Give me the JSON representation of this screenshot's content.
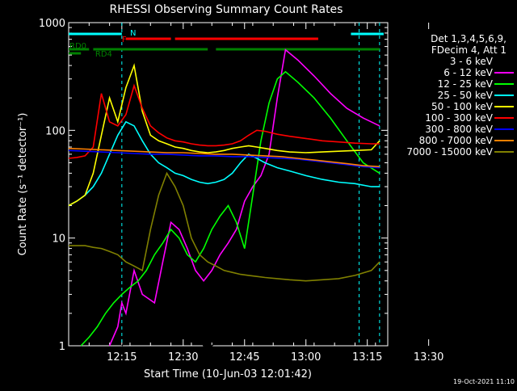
{
  "chart_data": {
    "type": "line",
    "title": "RHESSI Observing Summary Count Rates",
    "xlabel": "Start Time (10-Jun-03 12:01:42)",
    "ylabel": "Count Rate (s⁻¹ detector⁻¹)",
    "yscale": "log",
    "ylim": [
      1,
      1000
    ],
    "xlim_minutes": [
      2,
      40
    ],
    "x_ticks": [
      {
        "label": "12:15",
        "minutes": 15
      },
      {
        "label": "12:30",
        "minutes": 30
      },
      {
        "label": "12:45",
        "minutes": 45
      },
      {
        "label": "13:00",
        "minutes": 60
      },
      {
        "label": "13:15",
        "minutes": 75
      },
      {
        "label": "13:30",
        "minutes": 90
      }
    ],
    "y_ticks": [
      {
        "label": "1",
        "value": 1
      },
      {
        "label": "10",
        "value": 10
      },
      {
        "label": "100",
        "value": 100
      },
      {
        "label": "1000",
        "value": 1000
      }
    ],
    "legend_header": [
      "Det 1,3,4,5,6,9,",
      "FDecim 4, Att 1"
    ],
    "legend_position": "right",
    "timestamp": "19-Oct-2021 11:10",
    "series": [
      {
        "name": "3 - 6 keV",
        "color": "#000000",
        "x": [
          15,
          16,
          19,
          22,
          24,
          27,
          29,
          30,
          31,
          33,
          35,
          37,
          40,
          42,
          44,
          46,
          47,
          48,
          50,
          53,
          56,
          60,
          64,
          68,
          72,
          76,
          78
        ],
        "y": [
          1,
          1.1,
          1.2,
          1.4,
          1.8,
          3.5,
          4.5,
          4,
          2,
          1.3,
          1,
          1,
          1.2,
          1.6,
          1.8,
          2,
          1.6,
          2.2,
          8,
          28,
          46,
          32,
          20,
          12,
          7,
          4.5,
          3
        ]
      },
      {
        "name": "6 - 12 keV",
        "color": "#ff00ff",
        "x": [
          12,
          14,
          15,
          16,
          18,
          20,
          23,
          25,
          27,
          29,
          31,
          33,
          35,
          37,
          39,
          41,
          43,
          45,
          47,
          49,
          51,
          53,
          55,
          58,
          62,
          66,
          70,
          74,
          78
        ],
        "y": [
          1,
          1.5,
          2.5,
          2,
          5,
          3,
          2.5,
          6,
          14,
          12,
          8,
          5,
          4,
          5,
          7,
          9,
          12,
          22,
          30,
          38,
          60,
          200,
          560,
          450,
          320,
          220,
          160,
          130,
          110
        ]
      },
      {
        "name": "12 - 25 keV",
        "color": "#00ff00",
        "x": [
          5,
          7,
          9,
          11,
          13,
          15,
          17,
          19,
          21,
          23,
          25,
          27,
          29,
          31,
          33,
          35,
          37,
          39,
          41,
          43,
          45,
          47,
          49,
          51,
          53,
          55,
          58,
          62,
          66,
          70,
          74,
          78
        ],
        "y": [
          1,
          1.2,
          1.5,
          2,
          2.5,
          3,
          3.5,
          4,
          5,
          7,
          9,
          12,
          10,
          7,
          6,
          8,
          12,
          16,
          20,
          14,
          8,
          25,
          80,
          180,
          300,
          350,
          280,
          200,
          130,
          80,
          50,
          40
        ]
      },
      {
        "name": "25 - 50 keV",
        "color": "#00ffff",
        "x": [
          2,
          4,
          6,
          8,
          10,
          12,
          14,
          16,
          18,
          20,
          22,
          24,
          26,
          28,
          30,
          32,
          34,
          36,
          38,
          40,
          42,
          44,
          46,
          48,
          50,
          53,
          56,
          60,
          64,
          68,
          72,
          76,
          78
        ],
        "y": [
          20,
          22,
          25,
          30,
          40,
          60,
          90,
          120,
          110,
          80,
          60,
          50,
          45,
          40,
          38,
          35,
          33,
          32,
          33,
          35,
          40,
          50,
          60,
          55,
          50,
          45,
          42,
          38,
          35,
          33,
          32,
          30,
          30
        ]
      },
      {
        "name": "50 - 100 keV",
        "color": "#ffff00",
        "x": [
          2,
          4,
          6,
          8,
          10,
          12,
          14,
          16,
          18,
          20,
          22,
          24,
          26,
          28,
          30,
          32,
          34,
          36,
          38,
          40,
          42,
          44,
          46,
          48,
          50,
          53,
          56,
          60,
          64,
          68,
          72,
          76,
          78
        ],
        "y": [
          20,
          22,
          25,
          40,
          90,
          200,
          120,
          250,
          400,
          150,
          90,
          80,
          75,
          70,
          68,
          65,
          63,
          62,
          63,
          65,
          68,
          70,
          72,
          70,
          68,
          65,
          63,
          62,
          63,
          64,
          65,
          66,
          80
        ]
      },
      {
        "name": "100 - 300 keV",
        "color": "#ff0000",
        "x": [
          2,
          4,
          6,
          8,
          10,
          12,
          14,
          16,
          18,
          20,
          22,
          24,
          26,
          28,
          30,
          32,
          34,
          36,
          38,
          40,
          42,
          44,
          46,
          48,
          50,
          53,
          56,
          60,
          64,
          68,
          72,
          76,
          78
        ],
        "y": [
          55,
          56,
          58,
          70,
          220,
          120,
          110,
          140,
          260,
          160,
          110,
          95,
          85,
          80,
          78,
          75,
          73,
          72,
          72,
          73,
          75,
          80,
          90,
          100,
          98,
          92,
          88,
          84,
          80,
          78,
          76,
          75,
          75
        ]
      },
      {
        "name": "300 - 800 keV",
        "color": "#0000ff",
        "x": [
          2,
          6,
          10,
          14,
          18,
          22,
          26,
          30,
          34,
          38,
          42,
          46,
          50,
          54,
          58,
          62,
          66,
          70,
          74,
          78
        ],
        "y": [
          65,
          64,
          63,
          62,
          61,
          60,
          60,
          59,
          58,
          58,
          57,
          57,
          56,
          55,
          54,
          52,
          50,
          48,
          46,
          45
        ]
      },
      {
        "name": "800 - 7000 keV",
        "color": "#ff8000",
        "x": [
          2,
          6,
          10,
          14,
          18,
          22,
          26,
          30,
          34,
          38,
          42,
          46,
          50,
          54,
          58,
          62,
          66,
          70,
          74,
          78
        ],
        "y": [
          68,
          67,
          66,
          65,
          64,
          63,
          62,
          62,
          61,
          60,
          60,
          59,
          58,
          57,
          55,
          53,
          51,
          49,
          47,
          46
        ]
      },
      {
        "name": "7000 - 15000 keV",
        "color": "#808000",
        "x": [
          2,
          4,
          6,
          8,
          10,
          12,
          14,
          16,
          18,
          20,
          22,
          24,
          26,
          28,
          30,
          32,
          34,
          36,
          38,
          40,
          42,
          44,
          46,
          48,
          50,
          53,
          56,
          60,
          64,
          68,
          72,
          76,
          78
        ],
        "y": [
          8.5,
          8.5,
          8.5,
          8.2,
          8,
          7.5,
          7,
          6,
          5.5,
          5,
          12,
          25,
          40,
          30,
          20,
          10,
          7,
          6,
          5.5,
          5,
          4.8,
          4.6,
          4.5,
          4.4,
          4.3,
          4.2,
          4.1,
          4,
          4.1,
          4.2,
          4.5,
          5,
          6
        ]
      }
    ],
    "flags": [
      {
        "label": "N",
        "color": "#00ffff"
      },
      {
        "label": "F",
        "color": "#ff0000"
      },
      {
        "label": "RD0",
        "color": "#008000"
      },
      {
        "label": "RD4",
        "color": "#008000"
      }
    ]
  }
}
